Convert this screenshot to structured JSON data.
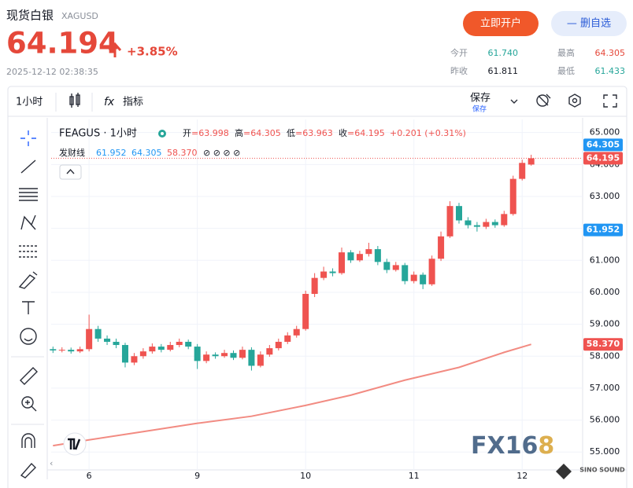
{
  "header": {
    "title": "现货白银",
    "symbol": "XAGUSD",
    "price": "64.194",
    "change": "+3.85%",
    "time": "2025-12-12 02:38:35",
    "buttons": [
      "立即开户",
      "— 删自选"
    ]
  },
  "stats": [
    {
      "label": "今开",
      "value": "61.740"
    },
    {
      "label": "最高",
      "value": "64.305"
    },
    {
      "label": "昨收",
      "value": "61.811"
    },
    {
      "label": "最低",
      "value": "61.433"
    }
  ],
  "toolbar": {
    "interval": "1小时",
    "fx": "fx",
    "indicators": "指标",
    "save": "保存",
    "save_sub": "保存"
  },
  "legend": {
    "symbol": "FEAGUS · 1小时",
    "ohlc": [
      {
        "label": "开",
        "value": "=63.998"
      },
      {
        "label": "高",
        "value": "=64.305"
      },
      {
        "label": "低",
        "value": "=63.963"
      },
      {
        "label": "收",
        "value": "=64.195"
      }
    ],
    "change": "+0.201 (+0.31%)",
    "indicator": "发财线",
    "indicator_values": [
      "61.952",
      "64.305",
      "58.370"
    ],
    "indicator_icons": "⊘ ⊘ ⊘ ⊘"
  },
  "watermark": {
    "fx": "FX16",
    "eight": "8",
    "brand": "SINO SOUND"
  },
  "chart_data": {
    "type": "candlestick",
    "x": [
      -8,
      -6,
      -4,
      -2,
      0,
      2,
      4,
      6,
      8,
      10,
      12,
      14,
      16,
      18,
      20,
      22,
      24,
      26,
      28,
      30,
      32,
      34,
      36,
      38,
      40,
      42,
      44,
      46,
      48,
      50,
      52,
      54,
      56,
      58,
      60,
      62,
      64,
      66,
      68,
      70,
      72,
      74,
      76,
      78,
      80,
      82,
      84,
      86,
      88,
      90,
      92,
      94,
      96,
      98
    ],
    "open": [
      58.22,
      58.18,
      58.2,
      58.15,
      58.22,
      58.85,
      58.55,
      58.45,
      58.35,
      57.8,
      58.0,
      58.15,
      58.3,
      58.2,
      58.35,
      58.45,
      58.3,
      57.85,
      58.05,
      58.0,
      58.1,
      57.95,
      58.2,
      57.7,
      58.05,
      58.25,
      58.45,
      58.65,
      58.85,
      59.95,
      60.45,
      60.65,
      60.6,
      61.25,
      61.0,
      61.2,
      61.35,
      60.95,
      60.7,
      60.85,
      60.35,
      60.55,
      60.25,
      61.05,
      61.75,
      62.7,
      62.25,
      62.1,
      62.05,
      62.2,
      62.1,
      62.45,
      63.55,
      63.998
    ],
    "high": [
      58.3,
      58.28,
      58.27,
      58.3,
      59.3,
      58.95,
      58.65,
      58.55,
      58.42,
      58.1,
      58.25,
      58.4,
      58.38,
      58.45,
      58.55,
      58.52,
      58.38,
      58.15,
      58.12,
      58.2,
      58.18,
      58.3,
      58.28,
      58.15,
      58.35,
      58.55,
      58.75,
      58.95,
      60.05,
      60.6,
      60.8,
      60.75,
      61.4,
      61.32,
      61.3,
      61.55,
      61.45,
      61.05,
      60.95,
      60.92,
      60.65,
      60.62,
      61.15,
      61.9,
      62.85,
      62.8,
      62.35,
      62.2,
      62.3,
      62.28,
      62.55,
      63.65,
      64.15,
      64.305
    ],
    "low": [
      58.1,
      58.12,
      58.08,
      58.1,
      58.15,
      58.45,
      58.35,
      58.25,
      57.65,
      57.72,
      57.92,
      58.08,
      58.12,
      58.15,
      58.28,
      58.22,
      57.6,
      57.78,
      57.92,
      57.95,
      57.88,
      57.9,
      57.55,
      57.65,
      57.98,
      58.18,
      58.38,
      58.58,
      58.8,
      59.85,
      60.38,
      60.5,
      60.55,
      60.92,
      60.95,
      61.12,
      60.85,
      60.6,
      60.65,
      60.25,
      60.28,
      60.1,
      60.2,
      60.98,
      61.7,
      62.15,
      62.0,
      61.9,
      61.98,
      62.02,
      62.05,
      62.4,
      63.5,
      63.963
    ],
    "close": [
      58.18,
      58.2,
      58.15,
      58.22,
      58.85,
      58.55,
      58.45,
      58.35,
      57.8,
      58.0,
      58.15,
      58.3,
      58.2,
      58.35,
      58.45,
      58.3,
      57.85,
      58.05,
      58.0,
      58.1,
      57.95,
      58.2,
      57.7,
      58.05,
      58.25,
      58.45,
      58.65,
      58.85,
      59.95,
      60.45,
      60.65,
      60.6,
      61.25,
      61.0,
      61.2,
      61.35,
      60.95,
      60.7,
      60.85,
      60.35,
      60.55,
      60.25,
      61.05,
      61.75,
      62.7,
      62.25,
      62.1,
      62.05,
      62.2,
      62.1,
      62.45,
      63.55,
      64.05,
      64.195
    ],
    "up_color": "#ef5350",
    "down_color": "#26a69a",
    "overlay": {
      "x": [
        -8,
        0,
        12,
        24,
        36,
        48,
        58,
        70,
        82,
        92,
        98
      ],
      "values": [
        55.2,
        55.38,
        55.64,
        55.9,
        56.12,
        56.46,
        56.78,
        57.25,
        57.65,
        58.12,
        58.37
      ],
      "color": "#f28b82"
    },
    "price_labels": [
      {
        "value": 64.305,
        "color": "#2196f3"
      },
      {
        "value": 64.195,
        "color": "#ef5350"
      },
      {
        "value": 61.952,
        "color": "#2196f3"
      },
      {
        "value": 58.37,
        "label": "58.370",
        "color": "#ef5350"
      }
    ],
    "xlim": [
      -8.4,
      109.4
    ],
    "xticks": [
      {
        "value": 0,
        "label": "6"
      },
      {
        "value": 24,
        "label": "9"
      },
      {
        "value": 48,
        "label": "10"
      },
      {
        "value": 72,
        "label": "11"
      },
      {
        "value": 96,
        "label": "12"
      }
    ],
    "ylim": [
      54.44,
      65.41
    ],
    "yticks": [
      {
        "value": 55,
        "label": "55.000"
      },
      {
        "value": 56,
        "label": "56.000"
      },
      {
        "value": 57,
        "label": "57.000"
      },
      {
        "value": 58,
        "label": "58.000"
      },
      {
        "value": 59,
        "label": "59.000"
      },
      {
        "value": 60,
        "label": "60.000"
      },
      {
        "value": 61,
        "label": "61.000"
      },
      {
        "value": 62,
        "label": "62.000"
      },
      {
        "value": 63,
        "label": "63.000"
      },
      {
        "value": 64,
        "label": "64.000"
      },
      {
        "value": 65,
        "label": "65.000"
      }
    ],
    "grid": true
  }
}
